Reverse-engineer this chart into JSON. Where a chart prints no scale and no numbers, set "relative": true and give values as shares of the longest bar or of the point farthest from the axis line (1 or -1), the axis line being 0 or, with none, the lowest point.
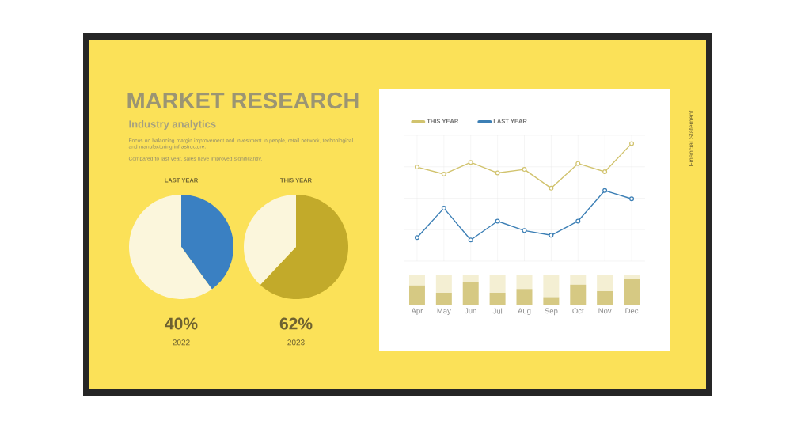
{
  "chart_data": [
    {
      "type": "other",
      "title": "MARKET RESEARCH",
      "subtitle": "Industry analytics",
      "annotations": [
        "Focus on balancing margin improvement and investment in people, retail network, technological and manufacturing infrastructure.",
        "Compared to last year, sales have improved significantly.",
        "Financial Statement"
      ]
    },
    {
      "type": "pie",
      "title": "LAST YEAR",
      "categories": [
        null,
        null
      ],
      "values": [
        40,
        60
      ],
      "colors": [
        "#3a80c2",
        "#fbf6dc"
      ],
      "annotations": [
        "40%",
        "2022"
      ]
    },
    {
      "type": "pie",
      "title": "THIS YEAR",
      "categories": [
        null,
        null
      ],
      "values": [
        62,
        38
      ],
      "colors": [
        "#c2aa2a",
        "#fbf6dc"
      ],
      "annotations": [
        "62%",
        "2023"
      ]
    },
    {
      "type": "line",
      "relative": true,
      "categories": [
        null,
        null,
        null,
        null,
        null,
        null,
        null,
        null,
        null
      ],
      "series": [
        {
          "name": "THIS YEAR",
          "color": "#d1c36e",
          "values": [
            0.8,
            0.74,
            0.84,
            0.75,
            0.78,
            0.62,
            0.83,
            0.76,
            1.0
          ]
        },
        {
          "name": "LAST YEAR",
          "color": "#3c7fb5",
          "values": [
            0.2,
            0.45,
            0.18,
            0.34,
            0.26,
            0.22,
            0.34,
            0.6,
            0.53
          ]
        }
      ],
      "grid": true,
      "legend": "top left",
      "marker": "circle"
    },
    {
      "type": "bar",
      "relative": true,
      "stacked": true,
      "categories": [
        "Apr",
        "May",
        "Jun",
        "Jul",
        "Aug",
        "Sep",
        "Oct",
        "Nov",
        "Dec"
      ],
      "series": [
        {
          "color": "#d6c983",
          "values": [
            0.65,
            0.41,
            0.76,
            0.41,
            0.53,
            0.27,
            0.67,
            0.46,
            0.86
          ]
        },
        {
          "color": "#f4efd3",
          "values": [
            0.35,
            0.59,
            0.24,
            0.59,
            0.47,
            0.73,
            0.33,
            0.54,
            0.14
          ]
        }
      ]
    }
  ]
}
